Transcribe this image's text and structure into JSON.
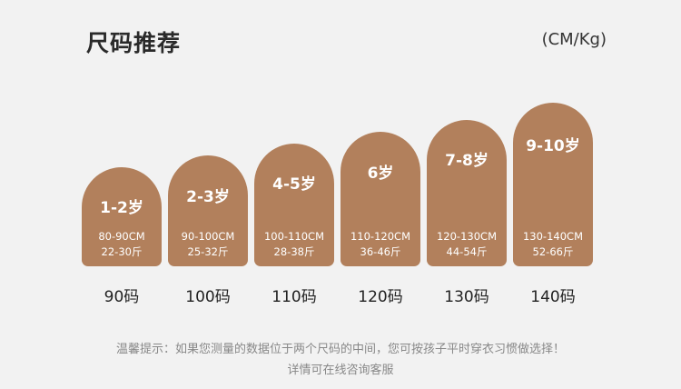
{
  "header": {
    "title": "尺码推荐",
    "unit": "(CM/Kg)"
  },
  "sizes": [
    {
      "age": "1-2岁",
      "height": "80-90CM",
      "weight": "22-30斤",
      "size": "90码"
    },
    {
      "age": "2-3岁",
      "height": "90-100CM",
      "weight": "25-32斤",
      "size": "100码"
    },
    {
      "age": "4-5岁",
      "height": "100-110CM",
      "weight": "28-38斤",
      "size": "110码"
    },
    {
      "age": "6岁",
      "height": "110-120CM",
      "weight": "36-46斤",
      "size": "120码"
    },
    {
      "age": "7-8岁",
      "height": "120-130CM",
      "weight": "44-54斤",
      "size": "130码"
    },
    {
      "age": "9-10岁",
      "height": "130-140CM",
      "weight": "52-66斤",
      "size": "140码"
    }
  ],
  "tips": {
    "line1": "温馨提示：如果您测量的数据位于两个尺码的中间，您可按孩子平时穿衣习惯做选择！",
    "line2": "详情可在线咨询客服"
  },
  "colors": {
    "card": "#b2805c",
    "background": "#f2f2f2"
  }
}
